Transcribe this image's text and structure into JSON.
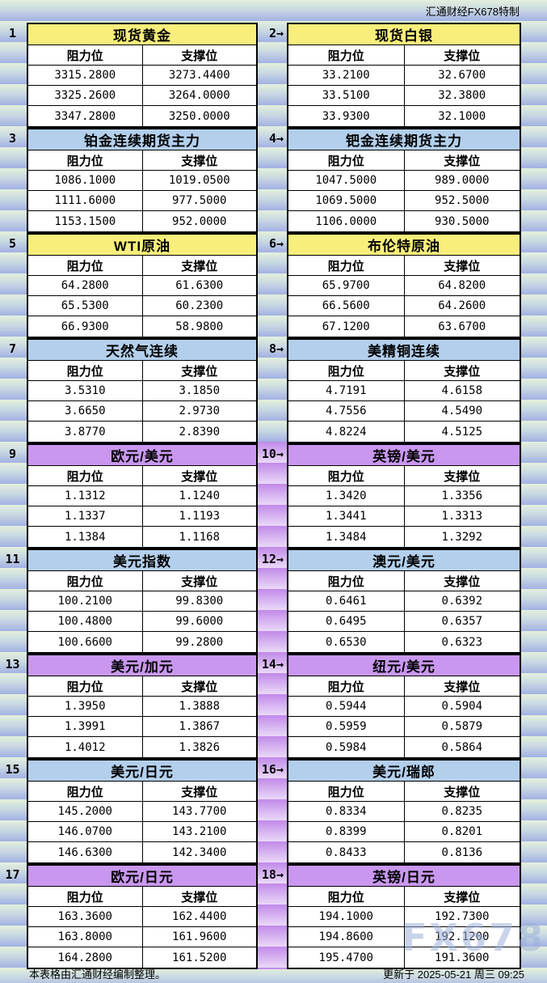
{
  "meta": {
    "brand_label": "汇通财经FX678特制",
    "footer_note": "本表格由汇通财经编制整理。",
    "updated_label": "更新于  2025-05-21  周三  09:25",
    "watermark": "FX678"
  },
  "columns": {
    "resistance": "阻力位",
    "support": "支撑位"
  },
  "palette": {
    "yellow": "#f8ee7b",
    "blue": "#b3cfec",
    "purple": "#c997ef",
    "stripe_green": "#e3f0dc",
    "stripe_blue": "#a2b1e3",
    "stripe_purple_dark": "#c18ae9",
    "stripe_purple_light": "#ead9f8",
    "table_border": "#000000",
    "watermark_color": "#9db1d9"
  },
  "panels": [
    {
      "tag": "1",
      "title": "现货黄金",
      "color": "yellow",
      "rows": [
        [
          "3315.2800",
          "3273.4400"
        ],
        [
          "3325.2600",
          "3264.0000"
        ],
        [
          "3347.2800",
          "3250.0000"
        ]
      ]
    },
    {
      "tag": "2→",
      "title": "现货白银",
      "color": "yellow",
      "rows": [
        [
          "33.2100",
          "32.6700"
        ],
        [
          "33.5100",
          "32.3800"
        ],
        [
          "33.9300",
          "32.1000"
        ]
      ]
    },
    {
      "tag": "3",
      "title": "铂金连续期货主力",
      "color": "blue",
      "rows": [
        [
          "1086.1000",
          "1019.0500"
        ],
        [
          "1111.6000",
          "977.5000"
        ],
        [
          "1153.1500",
          "952.0000"
        ]
      ]
    },
    {
      "tag": "4→",
      "title": "钯金连续期货主力",
      "color": "blue",
      "rows": [
        [
          "1047.5000",
          "989.0000"
        ],
        [
          "1069.5000",
          "952.5000"
        ],
        [
          "1106.0000",
          "930.5000"
        ]
      ]
    },
    {
      "tag": "5",
      "title": "WTI原油",
      "color": "yellow",
      "rows": [
        [
          "64.2800",
          "61.6300"
        ],
        [
          "65.5300",
          "60.2300"
        ],
        [
          "66.9300",
          "58.9800"
        ]
      ]
    },
    {
      "tag": "6→",
      "title": "布伦特原油",
      "color": "yellow",
      "rows": [
        [
          "65.9700",
          "64.8200"
        ],
        [
          "66.5600",
          "64.2600"
        ],
        [
          "67.1200",
          "63.6700"
        ]
      ]
    },
    {
      "tag": "7",
      "title": "天然气连续",
      "color": "blue",
      "rows": [
        [
          "3.5310",
          "3.1850"
        ],
        [
          "3.6650",
          "2.9730"
        ],
        [
          "3.8770",
          "2.8390"
        ]
      ]
    },
    {
      "tag": "8→",
      "title": "美精铜连续",
      "color": "blue",
      "rows": [
        [
          "4.7191",
          "4.6158"
        ],
        [
          "4.7556",
          "4.5490"
        ],
        [
          "4.8224",
          "4.5125"
        ]
      ]
    },
    {
      "tag": "9",
      "title": "欧元/美元",
      "color": "purple",
      "rows": [
        [
          "1.1312",
          "1.1240"
        ],
        [
          "1.1337",
          "1.1193"
        ],
        [
          "1.1384",
          "1.1168"
        ]
      ]
    },
    {
      "tag": "10→",
      "title": "英镑/美元",
      "color": "purple",
      "rows": [
        [
          "1.3420",
          "1.3356"
        ],
        [
          "1.3441",
          "1.3313"
        ],
        [
          "1.3484",
          "1.3292"
        ]
      ]
    },
    {
      "tag": "11",
      "title": "美元指数",
      "color": "blue",
      "rows": [
        [
          "100.2100",
          "99.8300"
        ],
        [
          "100.4800",
          "99.6000"
        ],
        [
          "100.6600",
          "99.2800"
        ]
      ]
    },
    {
      "tag": "12→",
      "title": "澳元/美元",
      "color": "blue",
      "rows": [
        [
          "0.6461",
          "0.6392"
        ],
        [
          "0.6495",
          "0.6357"
        ],
        [
          "0.6530",
          "0.6323"
        ]
      ]
    },
    {
      "tag": "13",
      "title": "美元/加元",
      "color": "purple",
      "rows": [
        [
          "1.3950",
          "1.3888"
        ],
        [
          "1.3991",
          "1.3867"
        ],
        [
          "1.4012",
          "1.3826"
        ]
      ]
    },
    {
      "tag": "14→",
      "title": "纽元/美元",
      "color": "purple",
      "rows": [
        [
          "0.5944",
          "0.5904"
        ],
        [
          "0.5959",
          "0.5879"
        ],
        [
          "0.5984",
          "0.5864"
        ]
      ]
    },
    {
      "tag": "15",
      "title": "美元/日元",
      "color": "blue",
      "rows": [
        [
          "145.2000",
          "143.7700"
        ],
        [
          "146.0700",
          "143.2100"
        ],
        [
          "146.6300",
          "142.3400"
        ]
      ]
    },
    {
      "tag": "16→",
      "title": "美元/瑞郎",
      "color": "blue",
      "rows": [
        [
          "0.8334",
          "0.8235"
        ],
        [
          "0.8399",
          "0.8201"
        ],
        [
          "0.8433",
          "0.8136"
        ]
      ]
    },
    {
      "tag": "17",
      "title": "欧元/日元",
      "color": "purple",
      "rows": [
        [
          "163.3600",
          "162.4400"
        ],
        [
          "163.8000",
          "161.9600"
        ],
        [
          "164.2800",
          "161.5200"
        ]
      ]
    },
    {
      "tag": "18→",
      "title": "英镑/日元",
      "color": "purple",
      "rows": [
        [
          "194.1000",
          "192.7300"
        ],
        [
          "194.8600",
          "192.1200"
        ],
        [
          "195.4700",
          "191.3600"
        ]
      ]
    }
  ]
}
